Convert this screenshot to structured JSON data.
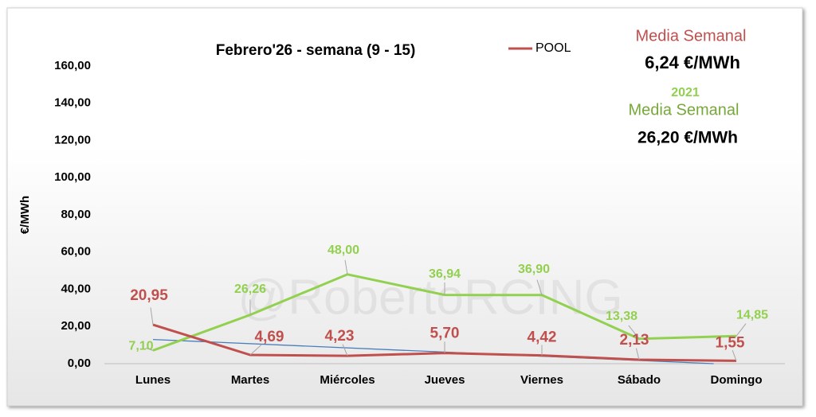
{
  "chart_data": {
    "type": "line",
    "title": "Febrero'26 - semana (9 - 15)",
    "y_label": "€/MWh",
    "categories": [
      "Lunes",
      "Martes",
      "Miércoles",
      "Jueves",
      "Viernes",
      "Sábado",
      "Domingo"
    ],
    "series": [
      {
        "name": "POOL",
        "color": "#c0504d",
        "values": [
          20.95,
          4.69,
          4.23,
          5.7,
          4.42,
          2.13,
          1.55
        ],
        "value_labels": [
          "20,95",
          "4,69",
          "4,23",
          "5,70",
          "4,42",
          "2,13",
          "1,55"
        ],
        "trendline_color": "#4a7ebb"
      },
      {
        "color": "#92d050",
        "values": [
          7.1,
          26.26,
          48.0,
          36.94,
          36.9,
          13.38,
          14.85
        ],
        "value_labels": [
          "7,10",
          "26,26",
          "48,00",
          "36,94",
          "36,90",
          "13,38",
          "14,85"
        ]
      }
    ],
    "ylim": [
      0,
      160
    ],
    "yticks": [
      {
        "value": 0,
        "label": "0,00"
      },
      {
        "value": 20,
        "label": "20,00"
      },
      {
        "value": 40,
        "label": "40,00"
      },
      {
        "value": 60,
        "label": "60,00"
      },
      {
        "value": 80,
        "label": "80,00"
      },
      {
        "value": 100,
        "label": "100,00"
      },
      {
        "value": 120,
        "label": "120,00"
      },
      {
        "value": 140,
        "label": "140,00"
      },
      {
        "value": 160,
        "label": "160,00"
      }
    ],
    "annotations": {
      "pool_mean": {
        "label": "Media Semanal",
        "value": "6,24 €/MWh"
      },
      "reference_mean": {
        "year": "2021",
        "label": "Media Semanal",
        "value": "26,20 €/MWh"
      }
    },
    "watermark": "@RobertoRCING"
  }
}
